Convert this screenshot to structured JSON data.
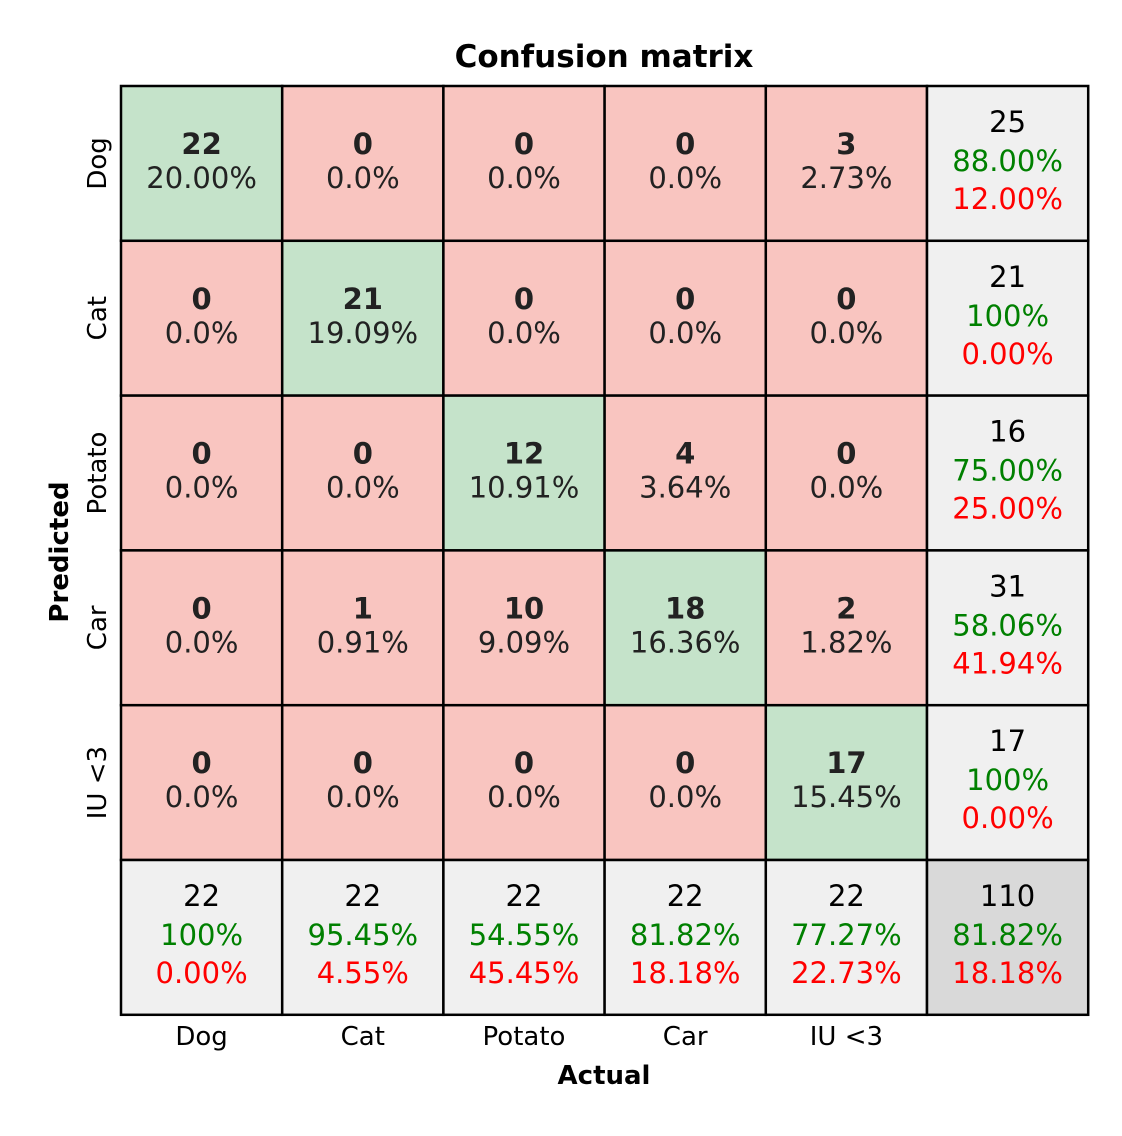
{
  "chart_data": {
    "type": "heatmap",
    "title": "Confusion matrix",
    "xlabel": "Actual",
    "ylabel": "Predicted",
    "categories": [
      "Dog",
      "Cat",
      "Potato",
      "Car",
      "IU <3"
    ],
    "matrix": [
      [
        22,
        0,
        0,
        0,
        3
      ],
      [
        0,
        21,
        0,
        0,
        0
      ],
      [
        0,
        0,
        12,
        4,
        0
      ],
      [
        0,
        1,
        10,
        18,
        2
      ],
      [
        0,
        0,
        0,
        0,
        17
      ]
    ],
    "cell_percent": [
      [
        "20.00%",
        "0.0%",
        "0.0%",
        "0.0%",
        "2.73%"
      ],
      [
        "0.0%",
        "19.09%",
        "0.0%",
        "0.0%",
        "0.0%"
      ],
      [
        "0.0%",
        "0.0%",
        "10.91%",
        "3.64%",
        "0.0%"
      ],
      [
        "0.0%",
        "0.91%",
        "9.09%",
        "16.36%",
        "1.82%"
      ],
      [
        "0.0%",
        "0.0%",
        "0.0%",
        "0.0%",
        "15.45%"
      ]
    ],
    "row_summary": [
      {
        "total": "25",
        "correct": "88.00%",
        "wrong": "12.00%"
      },
      {
        "total": "21",
        "correct": "100%",
        "wrong": "0.00%"
      },
      {
        "total": "16",
        "correct": "75.00%",
        "wrong": "25.00%"
      },
      {
        "total": "31",
        "correct": "58.06%",
        "wrong": "41.94%"
      },
      {
        "total": "17",
        "correct": "100%",
        "wrong": "0.00%"
      }
    ],
    "column_summary": [
      {
        "total": "22",
        "correct": "100%",
        "wrong": "0.00%"
      },
      {
        "total": "22",
        "correct": "95.45%",
        "wrong": "4.55%"
      },
      {
        "total": "22",
        "correct": "54.55%",
        "wrong": "45.45%"
      },
      {
        "total": "22",
        "correct": "81.82%",
        "wrong": "18.18%"
      },
      {
        "total": "22",
        "correct": "77.27%",
        "wrong": "22.73%"
      }
    ],
    "overall": {
      "total": "110",
      "correct": "81.82%",
      "wrong": "18.18%"
    },
    "colors": {
      "diagonal": "#c5e3ca",
      "off_diagonal": "#f9c5c0",
      "summary": "#f0f0f0",
      "overall": "#d9d9d9",
      "correct_text": "#008000",
      "wrong_text": "#ff0000"
    }
  }
}
